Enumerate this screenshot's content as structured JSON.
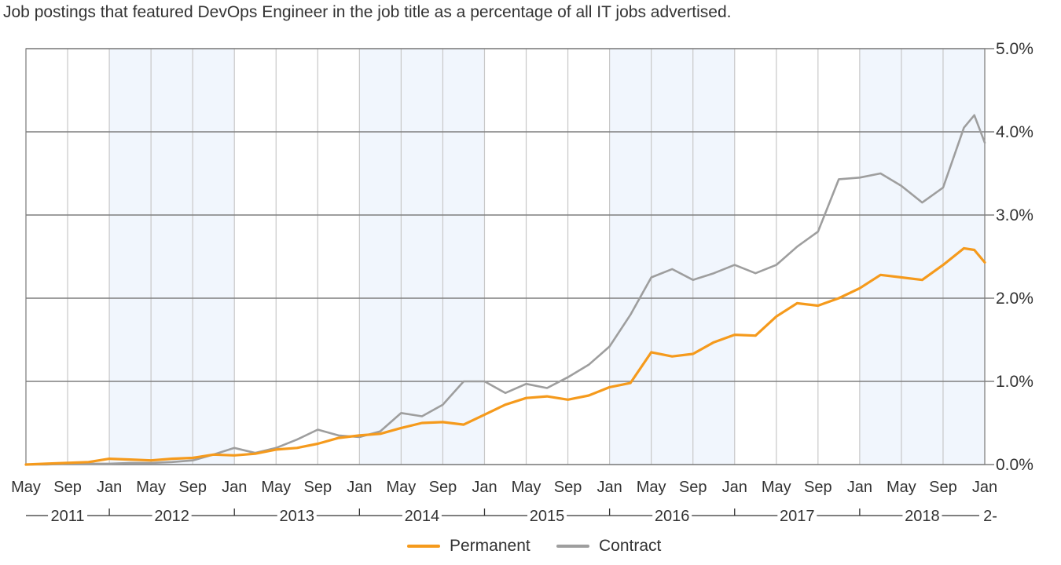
{
  "title": "Job postings that featured DevOps Engineer in the job title as a percentage of all IT jobs advertised.",
  "colors": {
    "permanent": "#f59a1c",
    "contract": "#9e9e9e",
    "shade": "#f1f6fd",
    "grid": "#7f7f7f",
    "vgrid": "#c8c8c8"
  },
  "legend": [
    {
      "label": "Permanent",
      "color": "#f59a1c"
    },
    {
      "label": "Contract",
      "color": "#9e9e9e"
    }
  ],
  "chart_data": {
    "type": "line",
    "title": "Job postings that featured DevOps Engineer in the job title as a percentage of all IT jobs advertised.",
    "x_unit": "month",
    "x_start": "2011-05",
    "x_end": "2019-01",
    "ylim": [
      0,
      5
    ],
    "y_ticks": [
      "0.0%",
      "1.0%",
      "2.0%",
      "3.0%",
      "4.0%",
      "5.0%"
    ],
    "x_tick_labels": [
      "May",
      "Sep",
      "Jan",
      "May",
      "Sep",
      "Jan",
      "May",
      "Sep",
      "Jan",
      "May",
      "Sep",
      "Jan",
      "May",
      "Sep",
      "Jan",
      "May",
      "Sep",
      "Jan",
      "May",
      "Sep",
      "Jan",
      "May",
      "Sep",
      "Jan"
    ],
    "year_labels": [
      "2011",
      "2012",
      "2013",
      "2014",
      "2015",
      "2016",
      "2017",
      "2018",
      "2-"
    ],
    "shaded_years": [
      "2012",
      "2014",
      "2016",
      "2018"
    ],
    "grid": true,
    "legend_position": "bottom",
    "series": [
      {
        "name": "Permanent",
        "points": [
          [
            "2011-05",
            0.0
          ],
          [
            "2011-07",
            0.01
          ],
          [
            "2011-09",
            0.02
          ],
          [
            "2011-11",
            0.03
          ],
          [
            "2012-01",
            0.07
          ],
          [
            "2012-03",
            0.06
          ],
          [
            "2012-05",
            0.05
          ],
          [
            "2012-07",
            0.07
          ],
          [
            "2012-09",
            0.08
          ],
          [
            "2012-11",
            0.12
          ],
          [
            "2013-01",
            0.11
          ],
          [
            "2013-03",
            0.13
          ],
          [
            "2013-05",
            0.18
          ],
          [
            "2013-07",
            0.2
          ],
          [
            "2013-09",
            0.25
          ],
          [
            "2013-11",
            0.32
          ],
          [
            "2014-01",
            0.35
          ],
          [
            "2014-03",
            0.37
          ],
          [
            "2014-05",
            0.44
          ],
          [
            "2014-07",
            0.5
          ],
          [
            "2014-09",
            0.51
          ],
          [
            "2014-11",
            0.48
          ],
          [
            "2015-01",
            0.6
          ],
          [
            "2015-03",
            0.72
          ],
          [
            "2015-05",
            0.8
          ],
          [
            "2015-07",
            0.82
          ],
          [
            "2015-09",
            0.78
          ],
          [
            "2015-11",
            0.83
          ],
          [
            "2016-01",
            0.93
          ],
          [
            "2016-03",
            0.98
          ],
          [
            "2016-05",
            1.35
          ],
          [
            "2016-07",
            1.3
          ],
          [
            "2016-09",
            1.33
          ],
          [
            "2016-11",
            1.47
          ],
          [
            "2017-01",
            1.56
          ],
          [
            "2017-03",
            1.55
          ],
          [
            "2017-05",
            1.78
          ],
          [
            "2017-07",
            1.94
          ],
          [
            "2017-09",
            1.91
          ],
          [
            "2017-11",
            2.0
          ],
          [
            "2018-01",
            2.12
          ],
          [
            "2018-03",
            2.28
          ],
          [
            "2018-05",
            2.25
          ],
          [
            "2018-07",
            2.22
          ],
          [
            "2018-09",
            2.4
          ],
          [
            "2018-11",
            2.6
          ],
          [
            "2018-12",
            2.58
          ],
          [
            "2019-01",
            2.43
          ]
        ]
      },
      {
        "name": "Contract",
        "points": [
          [
            "2011-05",
            0.0
          ],
          [
            "2011-07",
            0.0
          ],
          [
            "2011-09",
            0.01
          ],
          [
            "2011-11",
            0.01
          ],
          [
            "2012-01",
            0.01
          ],
          [
            "2012-03",
            0.02
          ],
          [
            "2012-05",
            0.02
          ],
          [
            "2012-07",
            0.03
          ],
          [
            "2012-09",
            0.05
          ],
          [
            "2012-11",
            0.12
          ],
          [
            "2013-01",
            0.2
          ],
          [
            "2013-03",
            0.14
          ],
          [
            "2013-05",
            0.2
          ],
          [
            "2013-07",
            0.3
          ],
          [
            "2013-09",
            0.42
          ],
          [
            "2013-11",
            0.35
          ],
          [
            "2014-01",
            0.33
          ],
          [
            "2014-03",
            0.4
          ],
          [
            "2014-05",
            0.62
          ],
          [
            "2014-07",
            0.58
          ],
          [
            "2014-09",
            0.72
          ],
          [
            "2014-11",
            1.0
          ],
          [
            "2015-01",
            1.0
          ],
          [
            "2015-03",
            0.86
          ],
          [
            "2015-05",
            0.97
          ],
          [
            "2015-07",
            0.92
          ],
          [
            "2015-09",
            1.05
          ],
          [
            "2015-11",
            1.2
          ],
          [
            "2016-01",
            1.42
          ],
          [
            "2016-03",
            1.8
          ],
          [
            "2016-05",
            2.25
          ],
          [
            "2016-07",
            2.35
          ],
          [
            "2016-09",
            2.22
          ],
          [
            "2016-11",
            2.3
          ],
          [
            "2017-01",
            2.4
          ],
          [
            "2017-03",
            2.3
          ],
          [
            "2017-05",
            2.4
          ],
          [
            "2017-07",
            2.62
          ],
          [
            "2017-09",
            2.8
          ],
          [
            "2017-11",
            3.43
          ],
          [
            "2018-01",
            3.45
          ],
          [
            "2018-03",
            3.5
          ],
          [
            "2018-05",
            3.35
          ],
          [
            "2018-07",
            3.15
          ],
          [
            "2018-09",
            3.33
          ],
          [
            "2018-11",
            4.05
          ],
          [
            "2018-12",
            4.2
          ],
          [
            "2019-01",
            3.87
          ]
        ]
      }
    ]
  }
}
